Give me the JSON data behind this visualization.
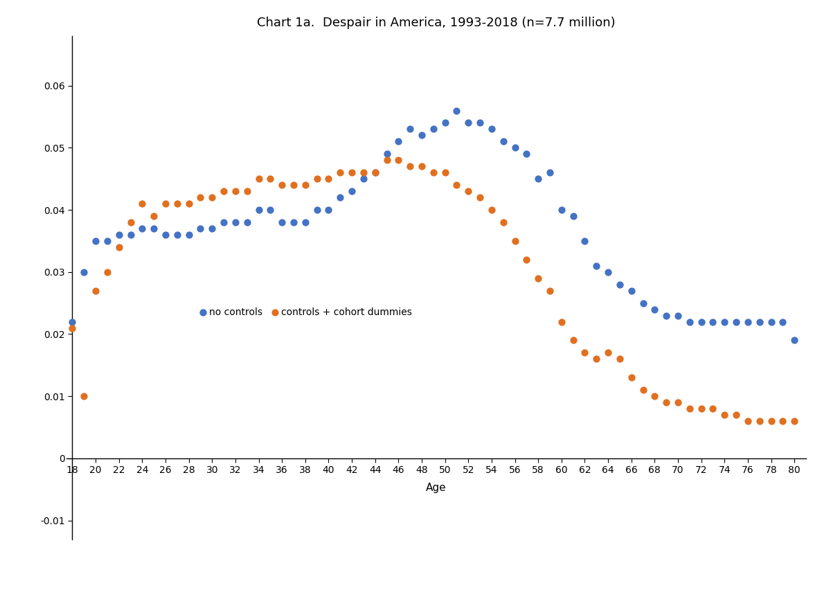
{
  "title": "Chart 1a.  Despair in America, 1993-2018 (n=7.7 million)",
  "xlabel": "Age",
  "xlim": [
    17.5,
    81
  ],
  "ylim": [
    -0.013,
    0.068
  ],
  "xticks": [
    18,
    20,
    22,
    24,
    26,
    28,
    30,
    32,
    34,
    36,
    38,
    40,
    42,
    44,
    46,
    48,
    50,
    52,
    54,
    56,
    58,
    60,
    62,
    64,
    66,
    68,
    70,
    72,
    74,
    76,
    78,
    80
  ],
  "yticks": [
    -0.01,
    0,
    0.01,
    0.02,
    0.03,
    0.04,
    0.05,
    0.06
  ],
  "blue_x": [
    18,
    19,
    20,
    21,
    22,
    23,
    24,
    25,
    26,
    27,
    28,
    29,
    30,
    31,
    32,
    33,
    34,
    35,
    36,
    37,
    38,
    39,
    40,
    41,
    42,
    43,
    44,
    45,
    46,
    47,
    48,
    49,
    50,
    51,
    52,
    53,
    54,
    55,
    56,
    57,
    58,
    59,
    60,
    61,
    62,
    63,
    64,
    65,
    66,
    67,
    68,
    69,
    70,
    71,
    72,
    73,
    74,
    75,
    76,
    77,
    78,
    79,
    80
  ],
  "blue_y": [
    0.022,
    0.03,
    0.035,
    0.035,
    0.036,
    0.036,
    0.037,
    0.037,
    0.036,
    0.036,
    0.036,
    0.037,
    0.037,
    0.038,
    0.038,
    0.038,
    0.04,
    0.04,
    0.038,
    0.038,
    0.038,
    0.04,
    0.04,
    0.042,
    0.043,
    0.045,
    0.046,
    0.049,
    0.051,
    0.053,
    0.052,
    0.053,
    0.054,
    0.056,
    0.054,
    0.054,
    0.053,
    0.051,
    0.05,
    0.049,
    0.045,
    0.046,
    0.04,
    0.039,
    0.035,
    0.031,
    0.03,
    0.028,
    0.027,
    0.025,
    0.024,
    0.023,
    0.023,
    0.022,
    0.022,
    0.022,
    0.022,
    0.022,
    0.022,
    0.022,
    0.022,
    0.022,
    0.019
  ],
  "orange_x": [
    18,
    19,
    20,
    21,
    22,
    23,
    24,
    25,
    26,
    27,
    28,
    29,
    30,
    31,
    32,
    33,
    34,
    35,
    36,
    37,
    38,
    39,
    40,
    41,
    42,
    43,
    44,
    45,
    46,
    47,
    48,
    49,
    50,
    51,
    52,
    53,
    54,
    55,
    56,
    57,
    58,
    59,
    60,
    61,
    62,
    63,
    64,
    65,
    66,
    67,
    68,
    69,
    70,
    71,
    72,
    73,
    74,
    75,
    76,
    77,
    78,
    79,
    80
  ],
  "orange_y": [
    0.021,
    0.01,
    0.027,
    0.03,
    0.034,
    0.038,
    0.041,
    0.039,
    0.041,
    0.041,
    0.041,
    0.042,
    0.042,
    0.043,
    0.043,
    0.043,
    0.045,
    0.045,
    0.044,
    0.044,
    0.044,
    0.045,
    0.045,
    0.046,
    0.046,
    0.046,
    0.046,
    0.048,
    0.048,
    0.047,
    0.047,
    0.046,
    0.046,
    0.044,
    0.043,
    0.042,
    0.04,
    0.038,
    0.035,
    0.032,
    0.029,
    0.027,
    0.022,
    0.019,
    0.017,
    0.016,
    0.017,
    0.016,
    0.013,
    0.011,
    0.01,
    0.009,
    0.009,
    0.008,
    0.008,
    0.008,
    0.007,
    0.007,
    0.006,
    0.006,
    0.006,
    0.006,
    0.006
  ],
  "blue_color": "#4472C4",
  "orange_color": "#E07020",
  "legend_label_blue": "no controls",
  "legend_label_orange": "controls + cohort dummies",
  "marker_size": 55,
  "title_fontsize": 13,
  "axis_fontsize": 11,
  "tick_fontsize": 10,
  "legend_fontsize": 10
}
